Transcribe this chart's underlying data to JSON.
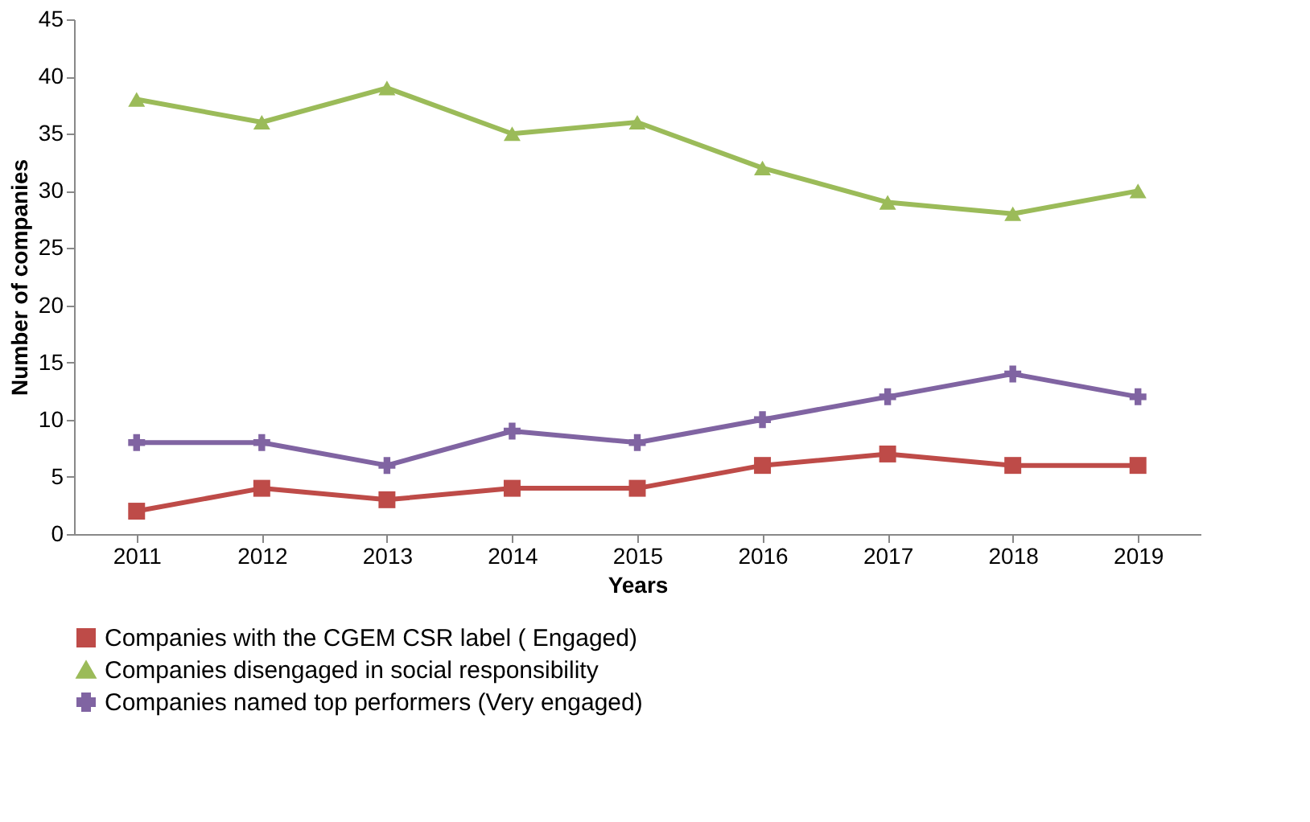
{
  "chart_data": {
    "type": "line",
    "xlabel": "Years",
    "ylabel": "Number of companies",
    "categories": [
      "2011",
      "2012",
      "2013",
      "2014",
      "2015",
      "2016",
      "2017",
      "2018",
      "2019"
    ],
    "series": [
      {
        "name": "Companies with the CGEM CSR label ( Engaged)",
        "color": "#be4b48",
        "marker": "square",
        "values": [
          2,
          4,
          3,
          4,
          4,
          6,
          7,
          6,
          6
        ]
      },
      {
        "name": "Companies disengaged in social responsibility",
        "color": "#9bbb59",
        "marker": "triangle",
        "values": [
          38,
          36,
          39,
          35,
          36,
          32,
          29,
          28,
          30
        ]
      },
      {
        "name": "Companies named top performers (Very engaged)",
        "color": "#8064a2",
        "marker": "cross",
        "values": [
          8,
          8,
          6,
          9,
          8,
          10,
          12,
          14,
          12
        ]
      }
    ],
    "ylim": [
      0,
      45
    ],
    "yticks": [
      0,
      5,
      10,
      15,
      20,
      25,
      30,
      35,
      40,
      45
    ],
    "grid": false,
    "legend": "bottom",
    "line_style": "solid"
  }
}
